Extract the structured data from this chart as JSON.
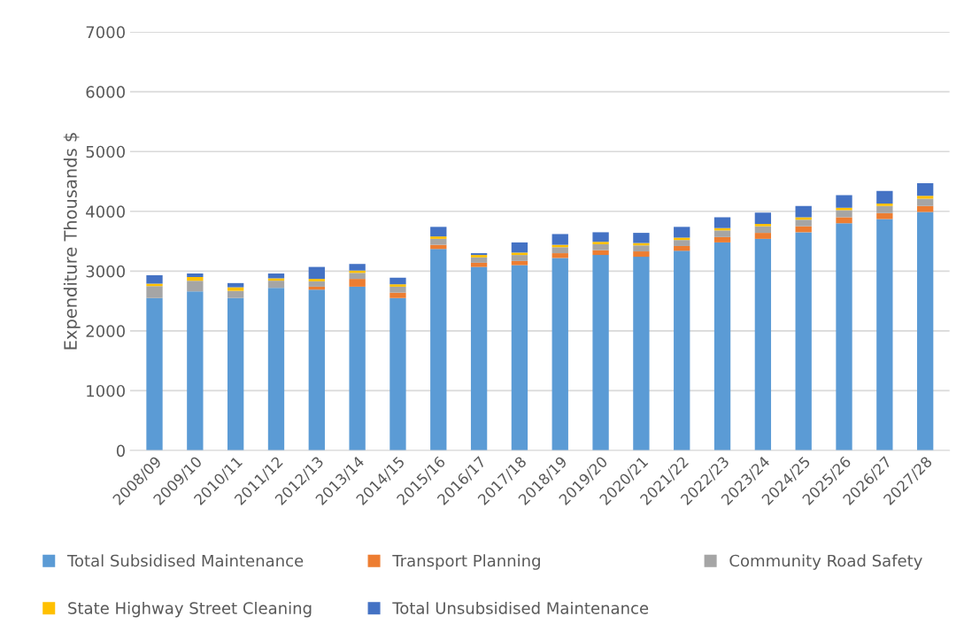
{
  "chart_data": {
    "type": "bar",
    "stacked": true,
    "ylabel": "Expenditure Thousands $",
    "categories": [
      "2008/09",
      "2009/10",
      "2010/11",
      "2011/12",
      "2012/13",
      "2013/14",
      "2014/15",
      "2015/16",
      "2016/17",
      "2017/18",
      "2018/19",
      "2019/20",
      "2020/21",
      "2021/22",
      "2022/23",
      "2023/24",
      "2024/25",
      "2025/26",
      "2026/27",
      "2027/28"
    ],
    "series": [
      {
        "name": "Total Subsidised Maintenance",
        "color": "#5b9bd5",
        "values": [
          2550,
          2660,
          2550,
          2720,
          2690,
          2740,
          2550,
          3370,
          3070,
          3100,
          3220,
          3270,
          3240,
          3340,
          3480,
          3540,
          3650,
          3800,
          3870,
          3990
        ]
      },
      {
        "name": "Transport Planning",
        "color": "#ed7d31",
        "values": [
          0,
          0,
          0,
          0,
          50,
          130,
          90,
          70,
          70,
          70,
          80,
          80,
          90,
          80,
          90,
          100,
          100,
          100,
          100,
          100
        ]
      },
      {
        "name": "Community Road Safety",
        "color": "#a5a5a5",
        "values": [
          200,
          180,
          120,
          120,
          90,
          100,
          100,
          100,
          90,
          100,
          100,
          100,
          100,
          100,
          110,
          110,
          110,
          120,
          120,
          120
        ]
      },
      {
        "name": "State Highway Street Cleaning",
        "color": "#ffc000",
        "values": [
          40,
          60,
          60,
          40,
          40,
          40,
          40,
          40,
          40,
          40,
          40,
          40,
          40,
          40,
          40,
          40,
          40,
          40,
          40,
          50
        ]
      },
      {
        "name": "Total Unsubsidised Maintenance",
        "color": "#4472c4",
        "values": [
          140,
          60,
          70,
          80,
          200,
          110,
          110,
          160,
          30,
          170,
          180,
          160,
          170,
          180,
          180,
          190,
          190,
          210,
          210,
          210
        ]
      }
    ],
    "ylim": [
      0,
      7000
    ],
    "yticks": [
      0,
      1000,
      2000,
      3000,
      4000,
      5000,
      6000,
      7000
    ],
    "grid": "y",
    "legend": "bottom"
  }
}
